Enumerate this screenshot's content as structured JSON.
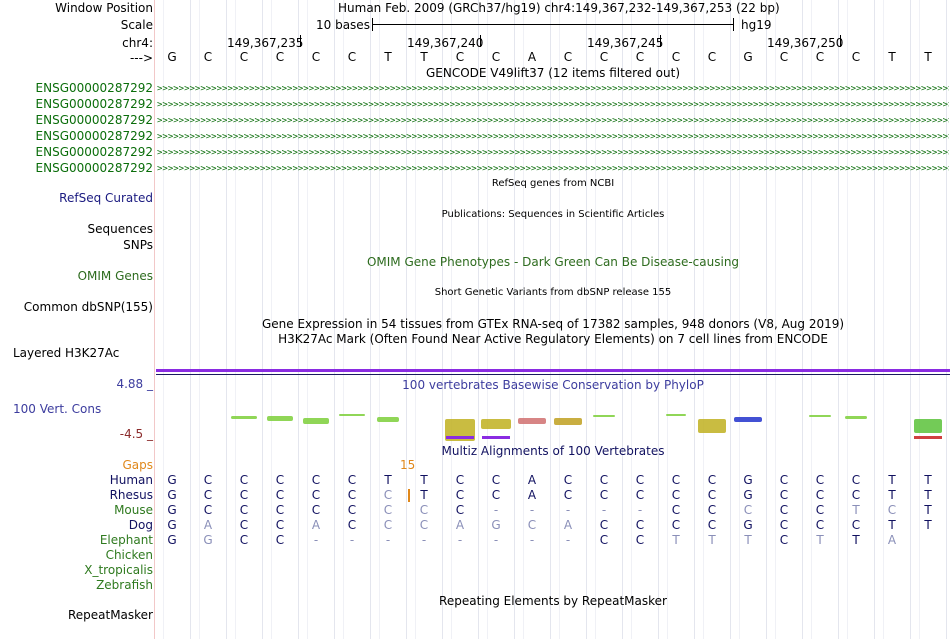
{
  "labels": {
    "window_position": "Window Position",
    "scale": "Scale",
    "chr": "chr4:",
    "arrow": "--->",
    "refseq": "RefSeq Curated",
    "sequences": "Sequences",
    "snps": "SNPs",
    "omim": "OMIM Genes",
    "dbsnp": "Common dbSNP(155)",
    "h3k27ac": "Layered H3K27Ac",
    "cons": "100 Vert. Cons",
    "cons_max": "4.88 _",
    "cons_min": "-4.5 _",
    "gaps": "Gaps",
    "repeatmasker": "RepeatMasker"
  },
  "colors": {
    "gene_green": "#0a6d0a",
    "refseq_blue": "#1a1a80",
    "omim_green": "#2d6b1e",
    "cons_blue": "#3c3c9e",
    "cons_red": "#8b2b2b",
    "gaps_orange": "#e0881b",
    "species_navy": "#111160",
    "species_green": "#2f7a1f",
    "h3k_purple": "#8a2be2"
  },
  "header": {
    "title": "Human Feb. 2009 (GRCh37/hg19)   chr4:149,367,232-149,367,253 (22 bp)",
    "scale_text": "10 bases",
    "assembly": "hg19",
    "positions": [
      "149,367,235",
      "149,367,240",
      "149,367,245",
      "149,367,250"
    ]
  },
  "sequence": [
    "G",
    "C",
    "C",
    "C",
    "C",
    "C",
    "T",
    "T",
    "C",
    "C",
    "A",
    "C",
    "C",
    "C",
    "C",
    "C",
    "G",
    "C",
    "C",
    "C",
    "T",
    "T"
  ],
  "gencode": {
    "title": "GENCODE V49lift37 (12 items filtered out)",
    "genes": [
      "ENSG00000287292",
      "ENSG00000287292",
      "ENSG00000287292",
      "ENSG00000287292",
      "ENSG00000287292",
      "ENSG00000287292"
    ]
  },
  "tracks": {
    "refseq_title": "RefSeq genes from NCBI",
    "publications_title": "Publications: Sequences in Scientific Articles",
    "omim_title": "OMIM Gene Phenotypes - Dark Green Can Be Disease-causing",
    "dbsnp_title": "Short Genetic Variants from dbSNP release 155",
    "gtex_title": "Gene Expression in 54 tissues from GTEx RNA-seq of 17382 samples, 948 donors (V8, Aug 2019)",
    "h3k_title": "H3K27Ac Mark (Often Found Near Active Regulatory Elements) on 7 cell lines from ENCODE",
    "phylop_title": "100 vertebrates Basewise Conservation by PhyloP",
    "multiz_title": "Multiz Alignments of 100 Vertebrates",
    "repeat_title": "Repeating Elements by RepeatMasker"
  },
  "gaps_value": "15",
  "alignments": [
    {
      "species": "Human",
      "bases": [
        "G",
        "C",
        "C",
        "C",
        "C",
        "C",
        "T",
        "T",
        "C",
        "C",
        "A",
        "C",
        "C",
        "C",
        "C",
        "C",
        "G",
        "C",
        "C",
        "C",
        "T",
        "T"
      ]
    },
    {
      "species": "Rhesus",
      "bases": [
        "G",
        "C",
        "C",
        "C",
        "C",
        "C",
        "C",
        "T",
        "C",
        "C",
        "A",
        "C",
        "C",
        "C",
        "C",
        "C",
        "G",
        "C",
        "C",
        "C",
        "T",
        "T"
      ]
    },
    {
      "species": "Mouse",
      "bases": [
        "G",
        "C",
        "C",
        "C",
        "C",
        "C",
        "C",
        "C",
        "C",
        "-",
        "-",
        "-",
        "-",
        "-",
        "C",
        "C",
        "C",
        "C",
        "C",
        "T",
        "C",
        "T"
      ]
    },
    {
      "species": "Dog",
      "bases": [
        "G",
        "A",
        "C",
        "C",
        "A",
        "C",
        "C",
        "C",
        "A",
        "G",
        "C",
        "A",
        "C",
        "C",
        "C",
        "C",
        "G",
        "C",
        "C",
        "C",
        "T",
        "T"
      ]
    },
    {
      "species": "Elephant",
      "bases": [
        "G",
        "G",
        "C",
        "C",
        "-",
        "-",
        "-",
        "-",
        "-",
        "-",
        "-",
        "-",
        "C",
        "C",
        "T",
        "T",
        "T",
        "C",
        "T",
        "T",
        "A",
        ""
      ]
    },
    {
      "species": "Chicken",
      "bases": []
    },
    {
      "species": "X_tropicalis",
      "bases": []
    },
    {
      "species": "Zebrafish",
      "bases": []
    }
  ],
  "mismatch": {
    "Rhesus": [
      6
    ],
    "Mouse": [
      6,
      7,
      9,
      10,
      11,
      12,
      13,
      16,
      19,
      20
    ],
    "Dog": [
      1,
      4,
      6,
      7,
      8,
      9,
      10,
      11
    ],
    "Elephant": [
      1,
      4,
      5,
      6,
      7,
      8,
      9,
      10,
      11,
      14,
      15,
      16,
      18,
      20
    ]
  },
  "species_green": [
    "Mouse",
    "Elephant",
    "Chicken",
    "X_tropicalis",
    "Zebrafish"
  ]
}
